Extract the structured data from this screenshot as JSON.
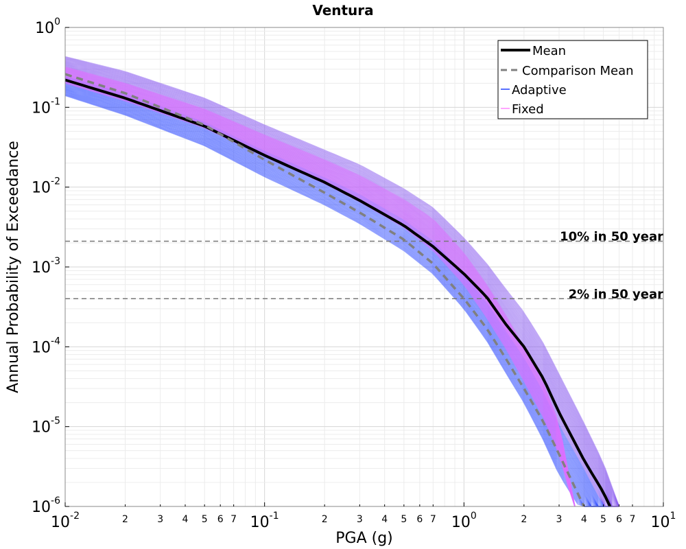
{
  "chart_data": {
    "type": "line",
    "title": "Ventura",
    "xlabel": "PGA (g)",
    "ylabel": "Annual Probability of Exceedance",
    "xscale": "log",
    "yscale": "log",
    "xlim": [
      0.01,
      10
    ],
    "ylim": [
      1e-06,
      1
    ],
    "grid": true,
    "legend_position": "top-right",
    "x_major_ticks": [
      {
        "base": "10",
        "exp": "-2"
      },
      {
        "base": "10",
        "exp": "-1"
      },
      {
        "base": "10",
        "exp": "0"
      },
      {
        "base": "10",
        "exp": "1"
      }
    ],
    "y_major_ticks": [
      {
        "base": "10",
        "exp": "0"
      },
      {
        "base": "10",
        "exp": "-1"
      },
      {
        "base": "10",
        "exp": "-2"
      },
      {
        "base": "10",
        "exp": "-3"
      },
      {
        "base": "10",
        "exp": "-4"
      },
      {
        "base": "10",
        "exp": "-5"
      },
      {
        "base": "10",
        "exp": "-6"
      }
    ],
    "x_minor_tick_labels": [
      "2",
      "3",
      "4",
      "5",
      "6",
      "7"
    ],
    "reference_lines": [
      {
        "label": "10% in 50 year",
        "y": 0.0021
      },
      {
        "label": "2% in 50 year",
        "y": 0.0004
      }
    ],
    "series": [
      {
        "name": "Mean",
        "color": "#000000",
        "style": "solid",
        "x": [
          0.01,
          0.02,
          0.05,
          0.1,
          0.2,
          0.3,
          0.5,
          0.7,
          1.0,
          1.3,
          1.6,
          2.0,
          2.5,
          3.0,
          4.0,
          5.0,
          5.4
        ],
        "y": [
          0.22,
          0.13,
          0.058,
          0.025,
          0.0115,
          0.0068,
          0.0033,
          0.0018,
          0.00082,
          0.00042,
          0.0002,
          0.0001,
          4e-05,
          1.5e-05,
          3.8e-06,
          1.5e-06,
          1e-06
        ]
      },
      {
        "name": "Comparison Mean",
        "color": "#808080",
        "style": "dashed",
        "x": [
          0.01,
          0.02,
          0.05,
          0.1,
          0.2,
          0.3,
          0.5,
          0.7,
          1.0,
          1.3,
          1.6,
          2.0,
          2.5,
          3.0,
          3.7,
          4.0
        ],
        "y": [
          0.26,
          0.15,
          0.06,
          0.022,
          0.0085,
          0.0048,
          0.0022,
          0.0011,
          0.0004,
          0.00017,
          7.5e-05,
          3e-05,
          1.15e-05,
          4.5e-06,
          1.5e-06,
          1e-06
        ]
      },
      {
        "name": "Adaptive",
        "color": "#2040ff",
        "style": "band",
        "x": [
          0.01,
          0.02,
          0.05,
          0.1,
          0.2,
          0.3,
          0.5,
          0.7,
          1.0,
          1.3,
          1.6,
          2.0,
          2.5,
          3.0,
          4.0,
          5.0,
          6.0
        ],
        "upper": [
          0.43,
          0.28,
          0.13,
          0.06,
          0.029,
          0.019,
          0.0095,
          0.0055,
          0.0023,
          0.0011,
          0.00055,
          0.00027,
          0.00011,
          4.5e-05,
          1.1e-05,
          3.5e-06,
          1e-06
        ],
        "lower": [
          0.14,
          0.08,
          0.033,
          0.0135,
          0.006,
          0.0035,
          0.0016,
          0.00082,
          0.0003,
          0.00012,
          5e-05,
          2e-05,
          6.8e-06,
          2.5e-06,
          8e-07,
          3e-07,
          1e-07
        ]
      },
      {
        "name": "Fixed",
        "color": "#ff88ff",
        "style": "band",
        "x": [
          0.01,
          0.02,
          0.05,
          0.1,
          0.2,
          0.3,
          0.5,
          0.7,
          1.0,
          1.3,
          1.6,
          2.0,
          2.5,
          3.0,
          3.6
        ],
        "upper": [
          0.32,
          0.2,
          0.095,
          0.045,
          0.022,
          0.014,
          0.007,
          0.004,
          0.0015,
          0.0006,
          0.00026,
          0.0001,
          3.5e-05,
          1.1e-05,
          1e-06
        ],
        "lower": [
          0.2,
          0.12,
          0.055,
          0.024,
          0.011,
          0.0065,
          0.0031,
          0.0016,
          0.0006,
          0.00023,
          0.0001,
          3.7e-05,
          1.3e-05,
          4.5e-06,
          9e-07
        ]
      }
    ]
  }
}
